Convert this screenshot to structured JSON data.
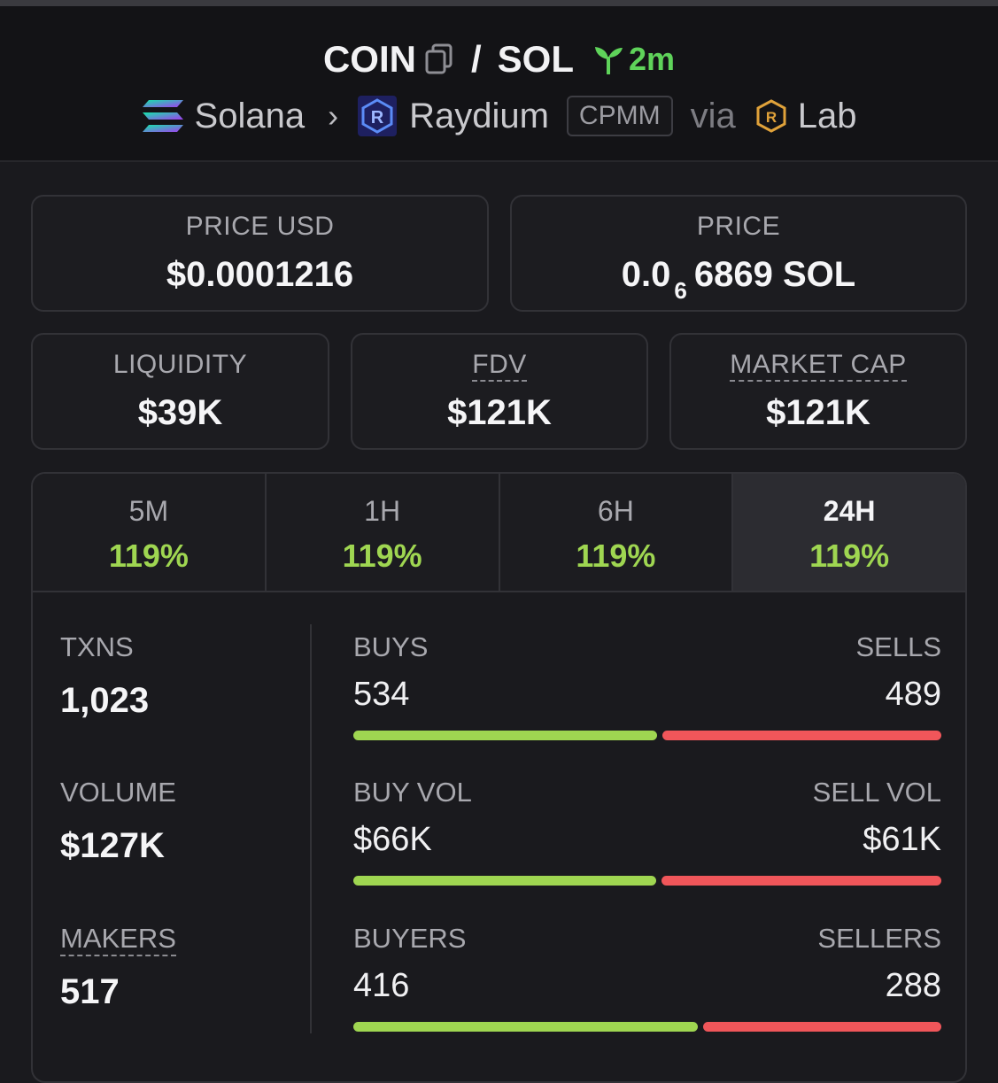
{
  "header": {
    "token_symbol": "COIN",
    "slash": "/",
    "quote_symbol": "SOL",
    "age": "2m",
    "chain": "Solana",
    "dex": "Raydium",
    "pool_type": "CPMM",
    "via_label": "via",
    "launchpad": "Lab"
  },
  "price_usd": {
    "label": "PRICE USD",
    "value": "$0.0001216"
  },
  "price_native": {
    "label": "PRICE",
    "prefix": "0.0",
    "zeros": "6",
    "digits": "6869",
    "unit": "SOL"
  },
  "liquidity": {
    "label": "LIQUIDITY",
    "value": "$39K"
  },
  "fdv": {
    "label": "FDV",
    "value": "$121K"
  },
  "market_cap": {
    "label": "MARKET CAP",
    "value": "$121K"
  },
  "tabs": [
    {
      "label": "5M",
      "value": "119%"
    },
    {
      "label": "1H",
      "value": "119%"
    },
    {
      "label": "6H",
      "value": "119%"
    },
    {
      "label": "24H",
      "value": "119%"
    }
  ],
  "active_tab": "24H",
  "stats": {
    "txns": {
      "label": "TXNS",
      "value": "1,023"
    },
    "volume": {
      "label": "VOLUME",
      "value": "$127K"
    },
    "makers": {
      "label": "MAKERS",
      "value": "517"
    },
    "buys": {
      "label": "BUYS",
      "value": "534",
      "count": 534
    },
    "sells": {
      "label": "SELLS",
      "value": "489",
      "count": 489
    },
    "buy_vol": {
      "label": "BUY VOL",
      "value": "$66K",
      "amount": 66
    },
    "sell_vol": {
      "label": "SELL VOL",
      "value": "$61K",
      "amount": 61
    },
    "buyers": {
      "label": "BUYERS",
      "value": "416",
      "count": 416
    },
    "sellers": {
      "label": "SELLERS",
      "value": "288",
      "count": 288
    }
  },
  "colors": {
    "positive": "#9fd651",
    "negative": "#f0565a",
    "age_green": "#5fd35a"
  }
}
